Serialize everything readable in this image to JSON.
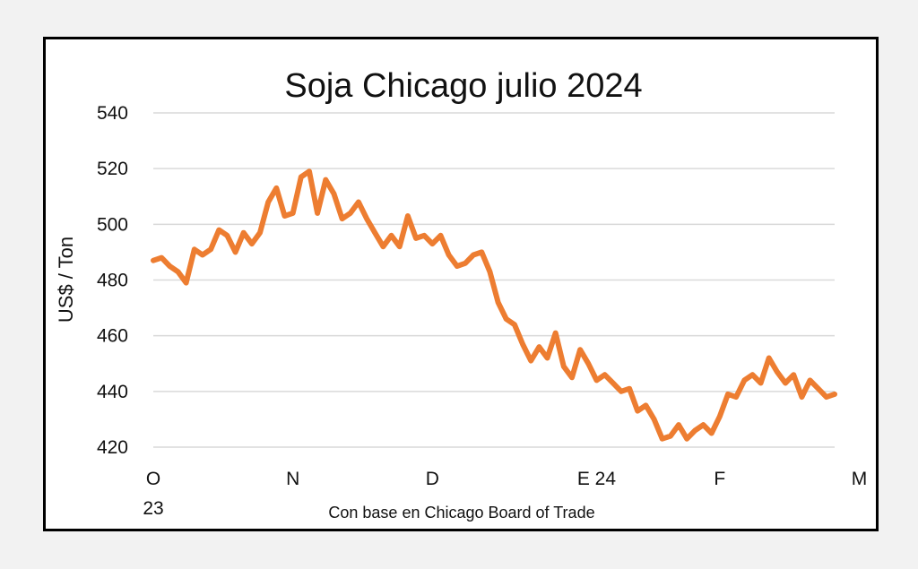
{
  "chart_data": {
    "type": "line",
    "title": "Soja Chicago julio 2024",
    "ylabel": "US$ / Ton",
    "xlabel": "Con base en Chicago Board of Trade",
    "ylim": [
      420,
      540
    ],
    "yticks": [
      540,
      520,
      500,
      480,
      460,
      440,
      420
    ],
    "grid": true,
    "legend": "none",
    "line_color": "#ED7D31",
    "x_ticks": [
      {
        "label": "O",
        "sublabel": "23",
        "index": 0
      },
      {
        "label": "N",
        "index": 17
      },
      {
        "label": "D",
        "index": 34
      },
      {
        "label": "E 24",
        "index": 54
      },
      {
        "label": "F",
        "index": 69
      },
      {
        "label": "M",
        "index": 86
      }
    ],
    "series": [
      {
        "values": [
          487,
          488,
          485,
          483,
          479,
          491,
          489,
          491,
          498,
          496,
          490,
          497,
          493,
          497,
          508,
          513,
          503,
          504,
          517,
          519,
          504,
          516,
          511,
          502,
          504,
          508,
          502,
          497,
          492,
          496,
          492,
          503,
          495,
          496,
          493,
          496,
          489,
          485,
          486,
          489,
          490,
          483,
          472,
          466,
          464,
          457,
          451,
          456,
          452,
          461,
          449,
          445,
          455,
          450,
          444,
          446,
          443,
          440,
          441,
          433,
          435,
          430,
          423,
          424,
          428,
          423,
          426,
          428,
          425,
          431,
          439,
          438,
          444,
          446,
          443,
          452,
          447,
          443,
          446,
          438,
          444,
          441,
          438,
          439
        ]
      }
    ]
  }
}
